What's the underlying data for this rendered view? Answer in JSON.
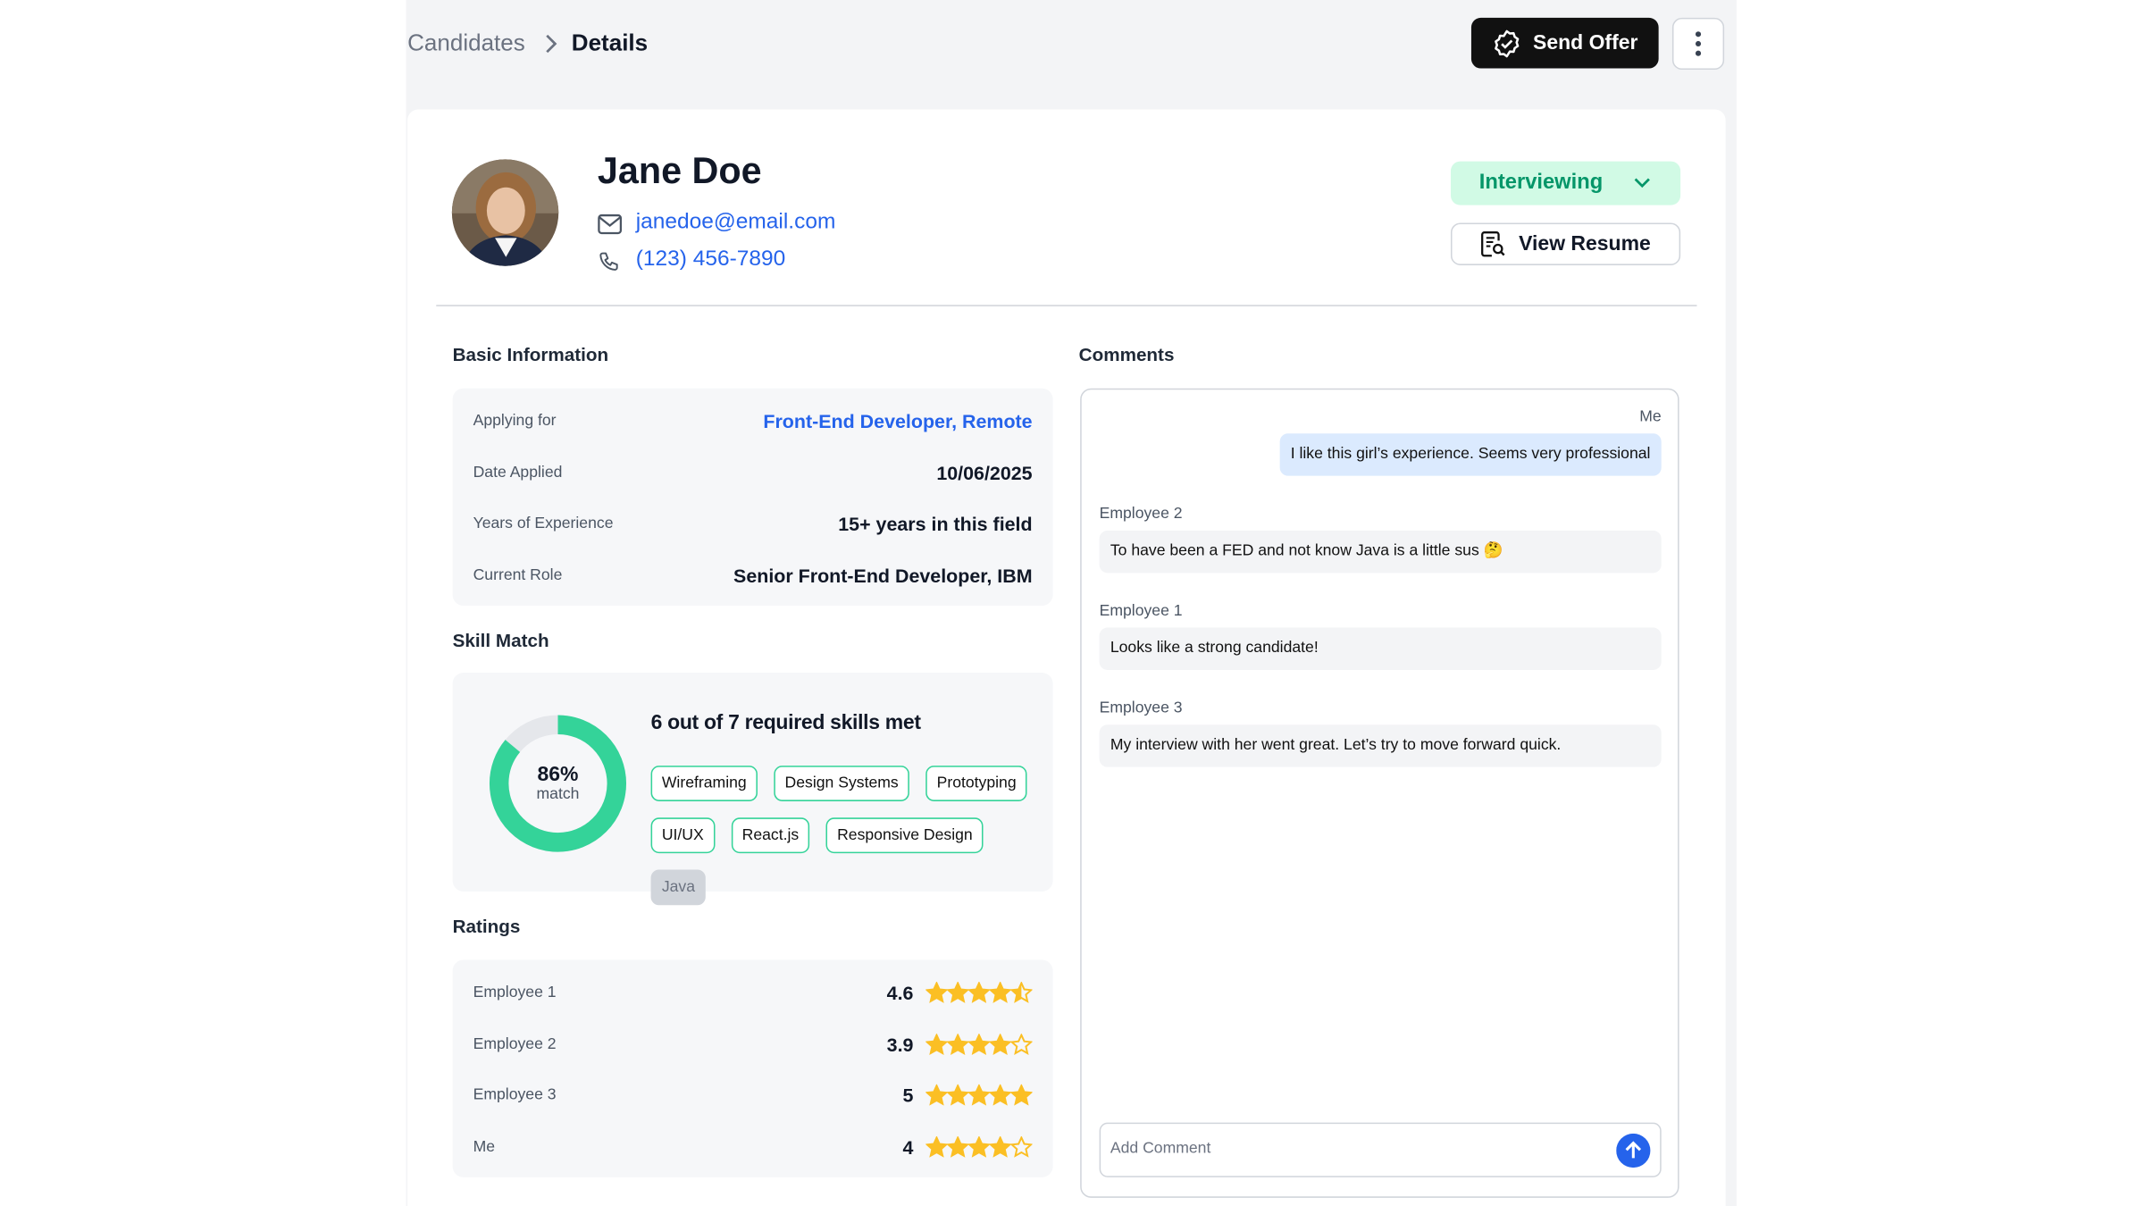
{
  "breadcrumb": {
    "parent": "Candidates",
    "current": "Details"
  },
  "actions": {
    "send_offer": "Send Offer"
  },
  "candidate": {
    "name": "Jane Doe",
    "email": "janedoe@email.com",
    "phone": "(123) 456-7890",
    "status": "Interviewing",
    "view_resume": "View Resume"
  },
  "basic_information": {
    "title": "Basic Information",
    "rows": [
      {
        "label": "Applying for",
        "value": "Front-End Developer, Remote",
        "link": true
      },
      {
        "label": "Date Applied",
        "value": "10/06/2025",
        "link": false
      },
      {
        "label": "Years of Experience",
        "value": "15+ years in this field",
        "link": false
      },
      {
        "label": "Current Role",
        "value": "Senior Front-End Developer, IBM",
        "link": false
      }
    ]
  },
  "skill_match": {
    "title": "Skill Match",
    "percent": 86,
    "percent_label": "86%",
    "percent_caption": "match",
    "summary": "6 out of 7 required skills met",
    "skills": [
      {
        "name": "Wireframing",
        "met": true
      },
      {
        "name": "Design Systems",
        "met": true
      },
      {
        "name": "Prototyping",
        "met": true
      },
      {
        "name": "UI/UX",
        "met": true
      },
      {
        "name": "React.js",
        "met": true
      },
      {
        "name": "Responsive Design",
        "met": true
      },
      {
        "name": "Java",
        "met": false
      }
    ]
  },
  "ratings": {
    "title": "Ratings",
    "max_stars": 5,
    "rows": [
      {
        "name": "Employee 1",
        "value": 4.6
      },
      {
        "name": "Employee 2",
        "value": 3.9
      },
      {
        "name": "Employee 3",
        "value": 5
      },
      {
        "name": "Me",
        "value": 4
      }
    ]
  },
  "comments": {
    "title": "Comments",
    "items": [
      {
        "author": "Me",
        "text": "I like this girl’s experience. Seems very professional",
        "mine": true
      },
      {
        "author": "Employee 2",
        "text": "To have been a FED and not know Java is a little sus 🤔",
        "mine": false
      },
      {
        "author": "Employee 1",
        "text": "Looks like a strong candidate!",
        "mine": false
      },
      {
        "author": "Employee 3",
        "text": "My interview with her went great. Let’s try to move forward quick.",
        "mine": false
      }
    ],
    "placeholder": "Add Comment"
  }
}
